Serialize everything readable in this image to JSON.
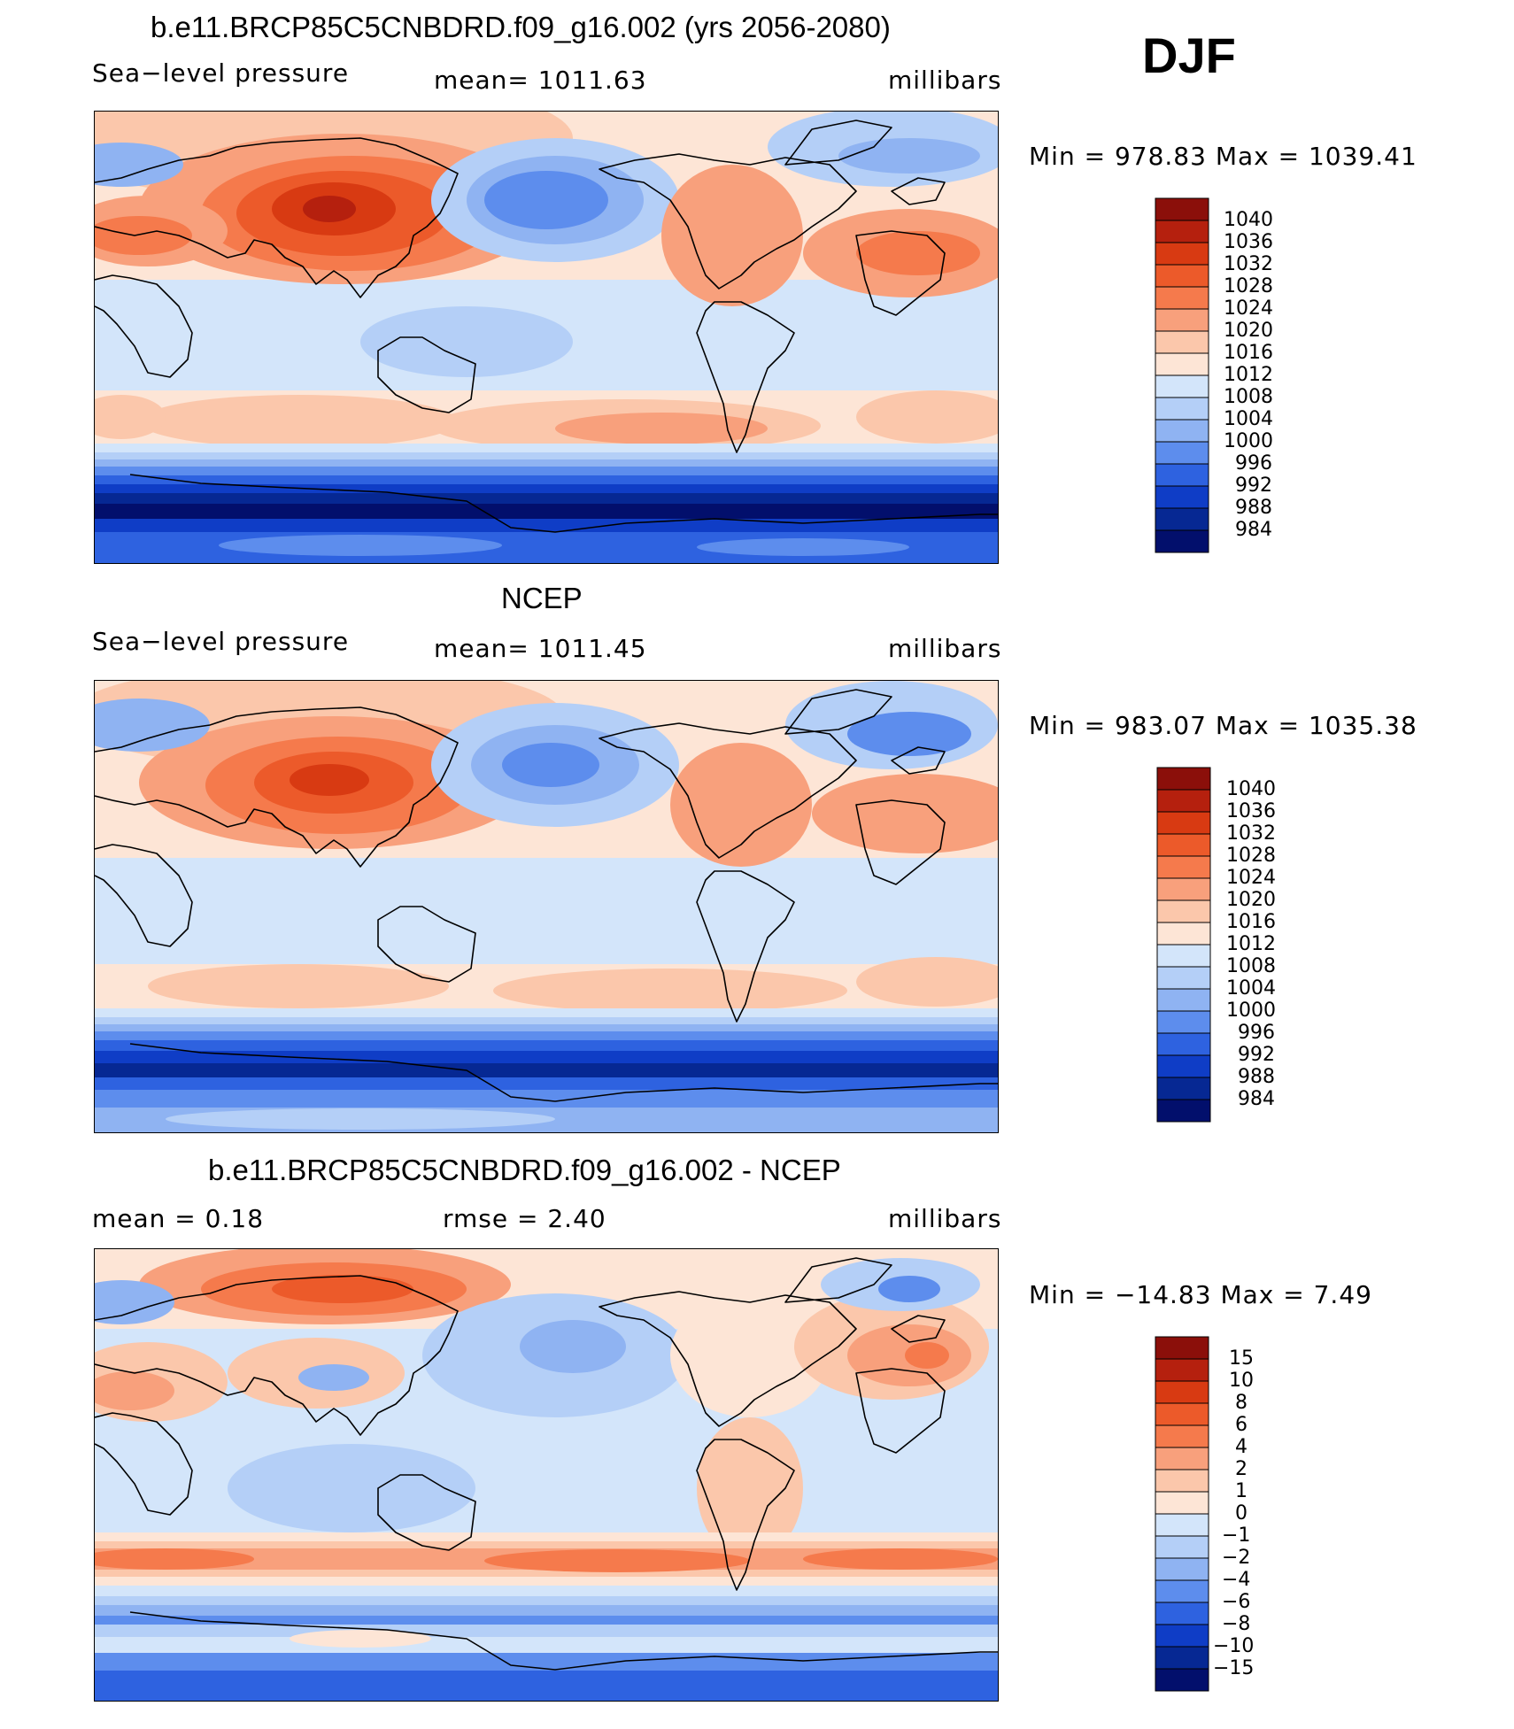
{
  "season": "DJF",
  "panels": [
    {
      "title": "b.e11.BRCP85C5CNBDRD.f09_g16.002 (yrs 2056-2080)",
      "left": "Sea−level pressure",
      "center": "mean=  1011.63",
      "right": "millibars",
      "minmax": "Min  =  978.83  Max  =  1039.41",
      "levels": [
        "1040",
        "1036",
        "1032",
        "1028",
        "1024",
        "1020",
        "1016",
        "1012",
        "1008",
        "1004",
        "1000",
        "996",
        "992",
        "988",
        "984"
      ]
    },
    {
      "title": "NCEP",
      "left": "Sea−level pressure",
      "center": "mean=  1011.45",
      "right": "millibars",
      "minmax": "Min  =  983.07  Max  =  1035.38",
      "levels": [
        "1040",
        "1036",
        "1032",
        "1028",
        "1024",
        "1020",
        "1016",
        "1012",
        "1008",
        "1004",
        "1000",
        "996",
        "992",
        "988",
        "984"
      ]
    },
    {
      "title": "b.e11.BRCP85C5CNBDRD.f09_g16.002 - NCEP",
      "left": "mean  =     0.18",
      "center": "rmse  =     2.40",
      "right": "millibars",
      "minmax": "Min  =  −14.83  Max  =     7.49",
      "levels": [
        "15",
        "10",
        "8",
        "6",
        "4",
        "2",
        "1",
        "0",
        "−1",
        "−2",
        "−4",
        "−6",
        "−8",
        "−10",
        "−15"
      ]
    }
  ],
  "colors": [
    "#8b0f0a",
    "#b5200e",
    "#d83a12",
    "#ec5a2a",
    "#f57a4c",
    "#f8a07c",
    "#fbc7ab",
    "#fde5d6",
    "#d3e5fa",
    "#b4cff7",
    "#8fb3f2",
    "#5d8ded",
    "#2e62e0",
    "#0f3dc6",
    "#062893",
    "#020f6c"
  ],
  "colors_note_hidden": ""
}
